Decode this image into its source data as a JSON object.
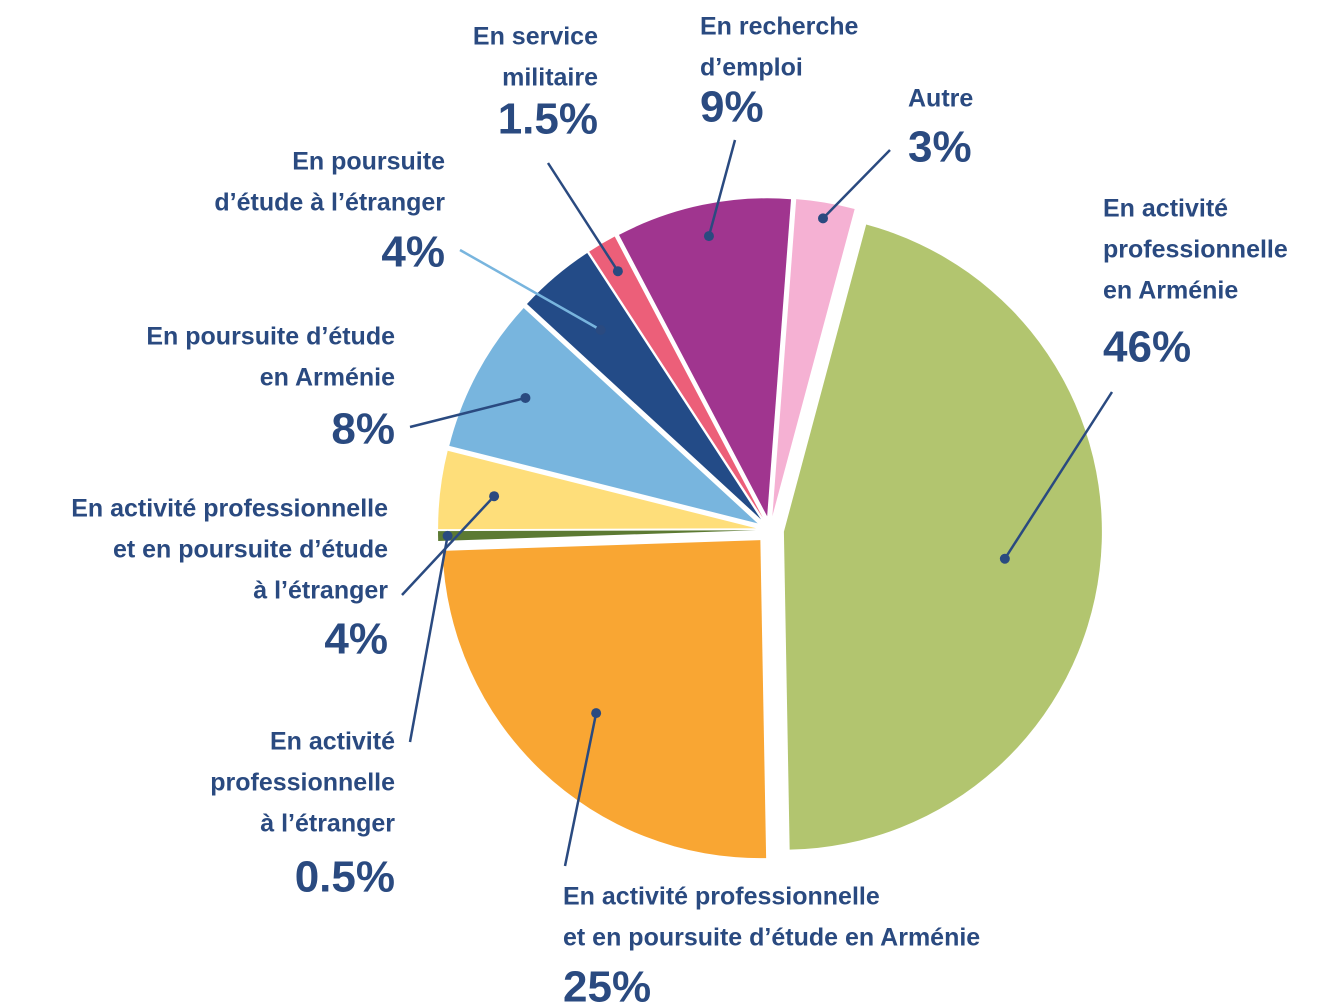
{
  "chart_data": {
    "type": "pie",
    "categories": [
      [
        "En activité",
        "professionnelle",
        "en Arménie"
      ],
      [
        "En activité professionnelle",
        "et en poursuite d’étude en Arménie"
      ],
      [
        "En activité",
        "professionnelle",
        "à l’étranger"
      ],
      [
        "En activité professionnelle",
        "et en poursuite d’étude",
        "à l’étranger"
      ],
      [
        "En poursuite d’étude",
        "en Arménie"
      ],
      [
        "En poursuite",
        "d’étude à l’étranger"
      ],
      [
        "En service",
        "militaire"
      ],
      [
        "En recherche",
        "d’emploi"
      ],
      [
        "Autre"
      ]
    ],
    "values": [
      46,
      25,
      0.5,
      4,
      8,
      4,
      1.5,
      9,
      3
    ],
    "value_labels": [
      "46%",
      "25%",
      "0.5%",
      "4%",
      "8%",
      "4%",
      "1.5%",
      "9%",
      "3%"
    ],
    "colors": [
      "#b2c56f",
      "#f9a633",
      "#5c7a33",
      "#fede7a",
      "#78b5de",
      "#234b87",
      "#ec5f79",
      "#a0358f",
      "#f5b1d3"
    ]
  }
}
